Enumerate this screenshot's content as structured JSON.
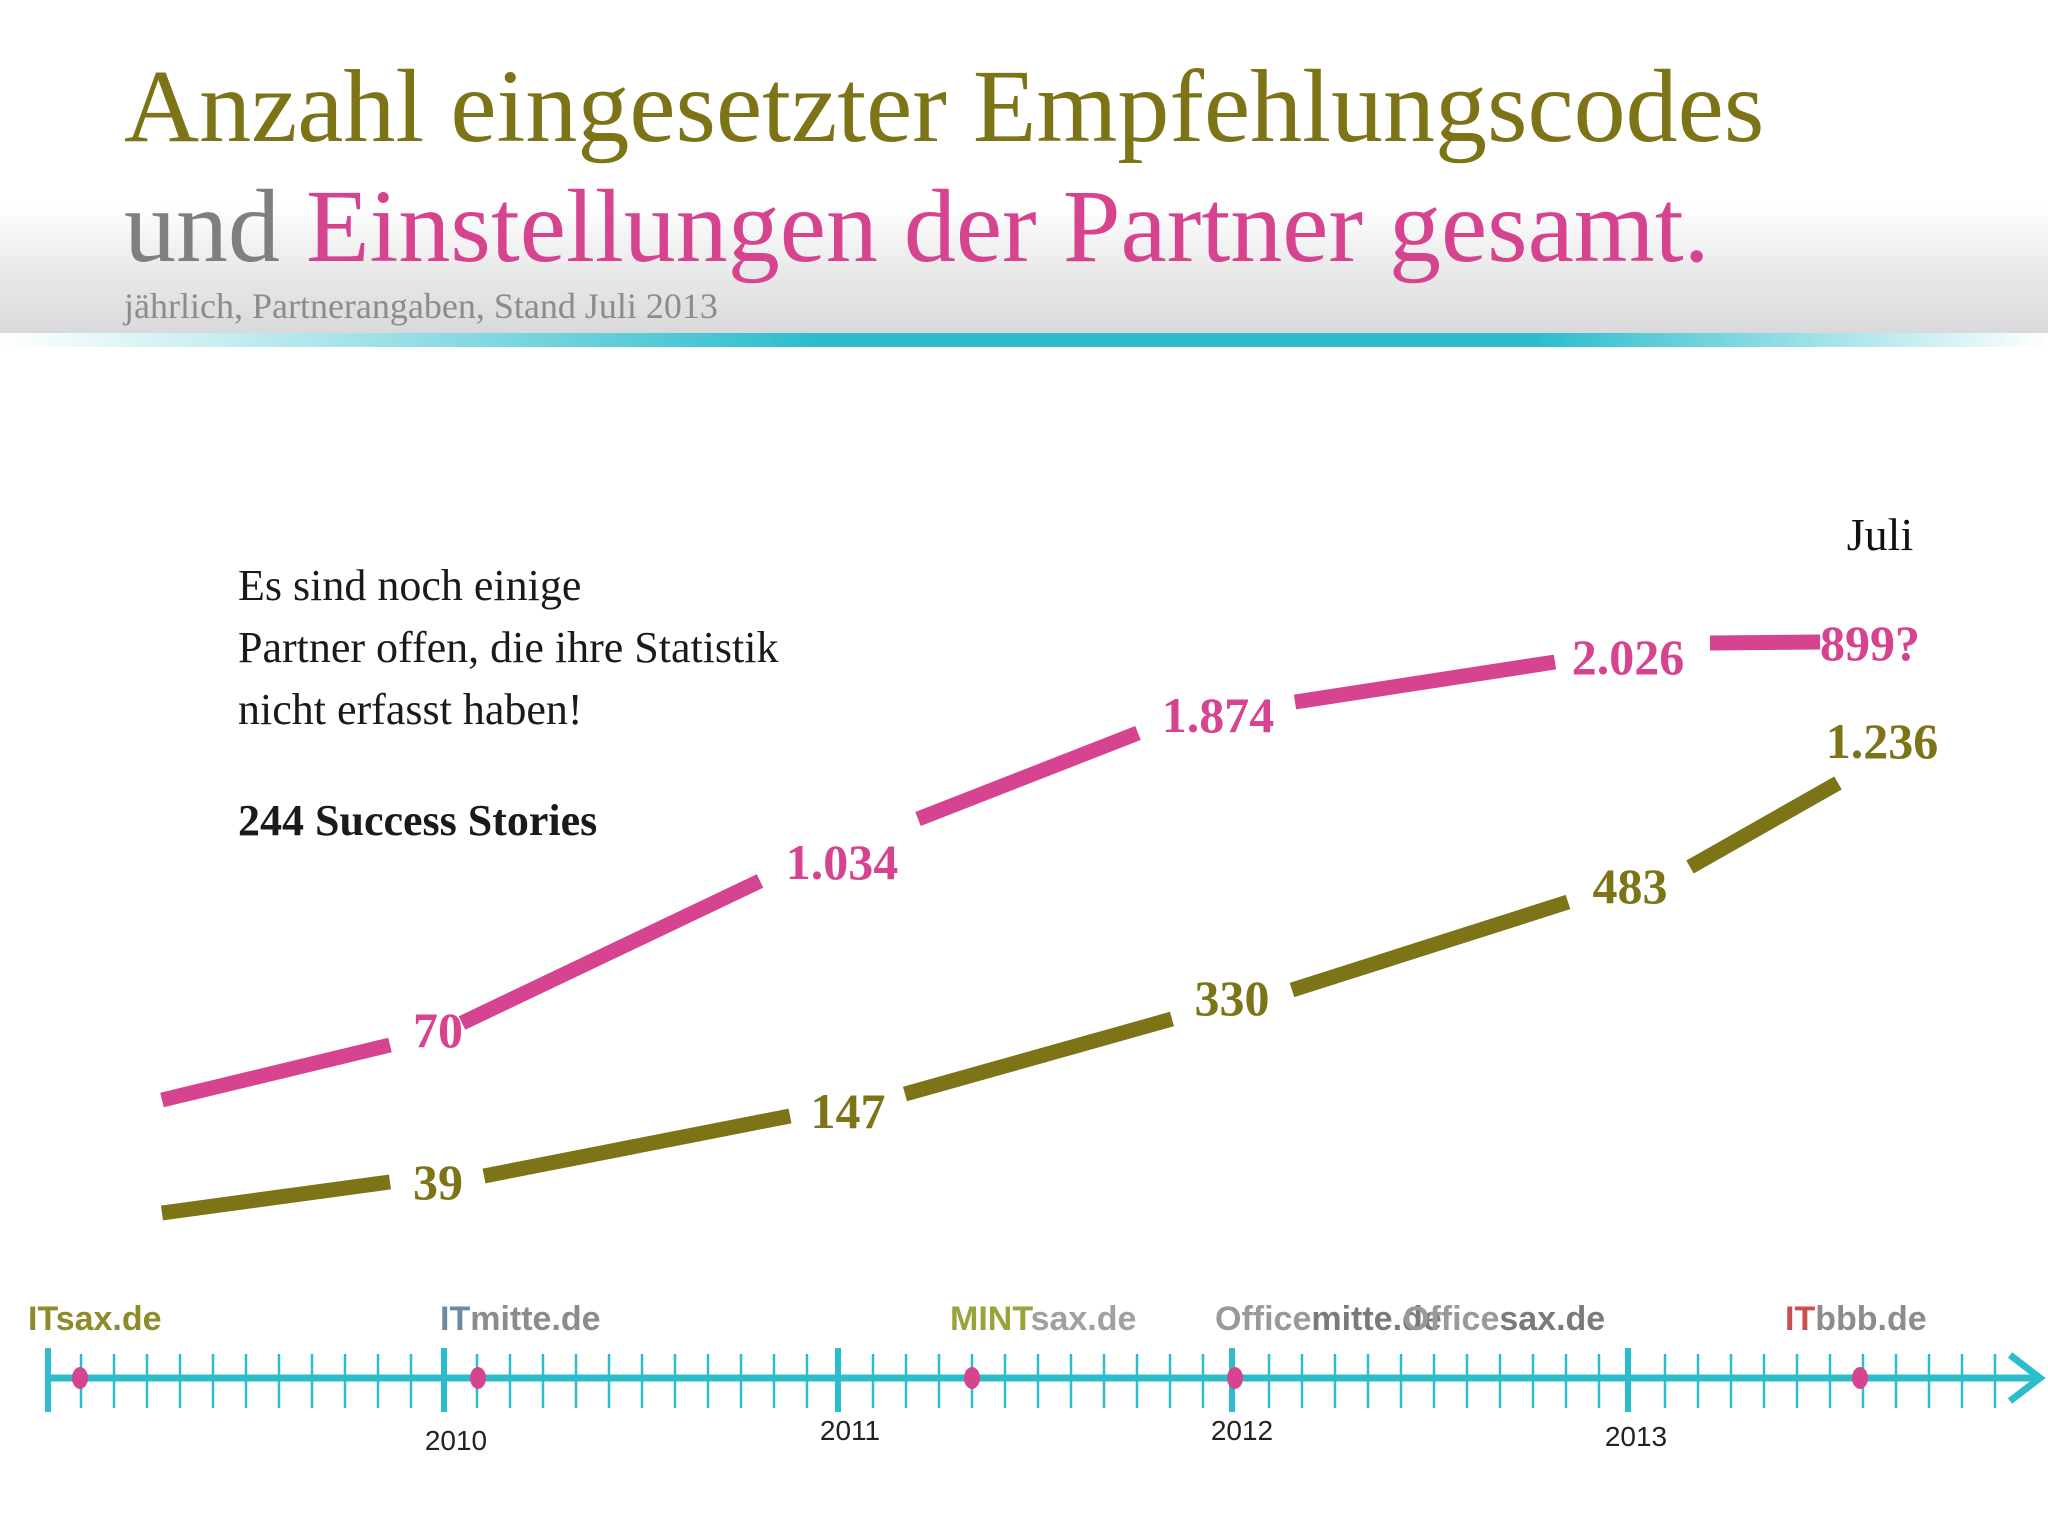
{
  "title": {
    "line1": "Anzahl eingesetzter Empfehlungscodes",
    "line2_part1": "und",
    "line2_part2": "Einstellungen der Partner gesamt.",
    "subtitle": "jährlich, Partnerangaben, Stand Juli 2013"
  },
  "note": {
    "lines": [
      "Es sind noch einige",
      "Partner offen, die ihre Statistik",
      "nicht erfasst haben!"
    ],
    "stories": "244 Success Stories"
  },
  "colors": {
    "pink": "#d6448f",
    "olive": "#7d7418",
    "teal": "#2bbdcc",
    "gray": "#7f7f7f"
  },
  "chart_data": {
    "type": "line",
    "x_extra_label": "Juli",
    "series": [
      {
        "color": "#d6448f",
        "labels": [
          "70",
          "1.034",
          "1.874",
          "2.026",
          "899?"
        ]
      },
      {
        "color": "#7d7418",
        "labels": [
          "39",
          "147",
          "330",
          "483",
          "1.236"
        ]
      }
    ]
  },
  "timeline": {
    "years": [
      "2010",
      "2011",
      "2012",
      "2013"
    ],
    "logos": [
      {
        "prefix": "IT",
        "suffix": "sax.de"
      },
      {
        "prefix": "IT",
        "suffix": "mitte.de"
      },
      {
        "prefix": "MINT",
        "suffix": "sax.de"
      },
      {
        "prefix": "Office",
        "suffix": "mitte.de"
      },
      {
        "prefix": "Office",
        "suffix": "sax.de"
      },
      {
        "prefix": "IT",
        "suffix": "bbb.de"
      }
    ]
  }
}
